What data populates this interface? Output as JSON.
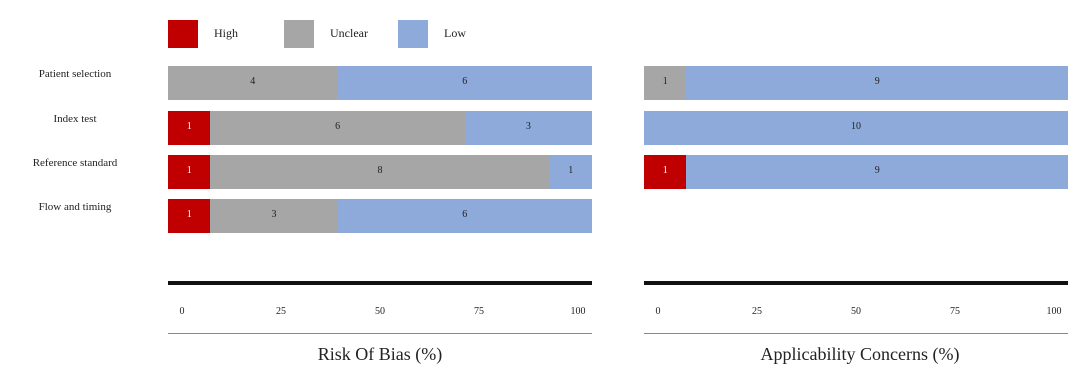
{
  "legend": [
    {
      "label": "High",
      "color": "#c00000"
    },
    {
      "label": "Unclear",
      "color": "#a6a6a6"
    },
    {
      "label": "Low",
      "color": "#8eaadb"
    }
  ],
  "chart_data": [
    {
      "type": "bar",
      "orientation": "horizontal",
      "stacked": true,
      "xlabel": "Risk Of Bias (%)",
      "xlim": [
        0,
        100
      ],
      "xticks": [
        "0",
        "25",
        "50",
        "75",
        "100"
      ],
      "categories": [
        "Patient selection",
        "Index test",
        "Reference standard",
        "Flow and timing"
      ],
      "series": [
        {
          "name": "High",
          "values": [
            0,
            1,
            1,
            1
          ],
          "color": "#c00000"
        },
        {
          "name": "Unclear",
          "values": [
            4,
            6,
            8,
            3
          ],
          "color": "#a6a6a6"
        },
        {
          "name": "Low",
          "values": [
            6,
            3,
            1,
            6
          ],
          "color": "#8eaadb"
        }
      ]
    },
    {
      "type": "bar",
      "orientation": "horizontal",
      "stacked": true,
      "xlabel": "Applicability Concerns (%)",
      "xlim": [
        0,
        100
      ],
      "xticks": [
        "0",
        "25",
        "50",
        "75",
        "100"
      ],
      "categories": [
        "Patient selection",
        "Index test",
        "Reference standard"
      ],
      "series": [
        {
          "name": "High",
          "values": [
            0,
            0,
            1
          ],
          "color": "#c00000"
        },
        {
          "name": "Unclear",
          "values": [
            1,
            0,
            0
          ],
          "color": "#a6a6a6"
        },
        {
          "name": "Low",
          "values": [
            9,
            10,
            9
          ],
          "color": "#8eaadb"
        }
      ]
    }
  ]
}
